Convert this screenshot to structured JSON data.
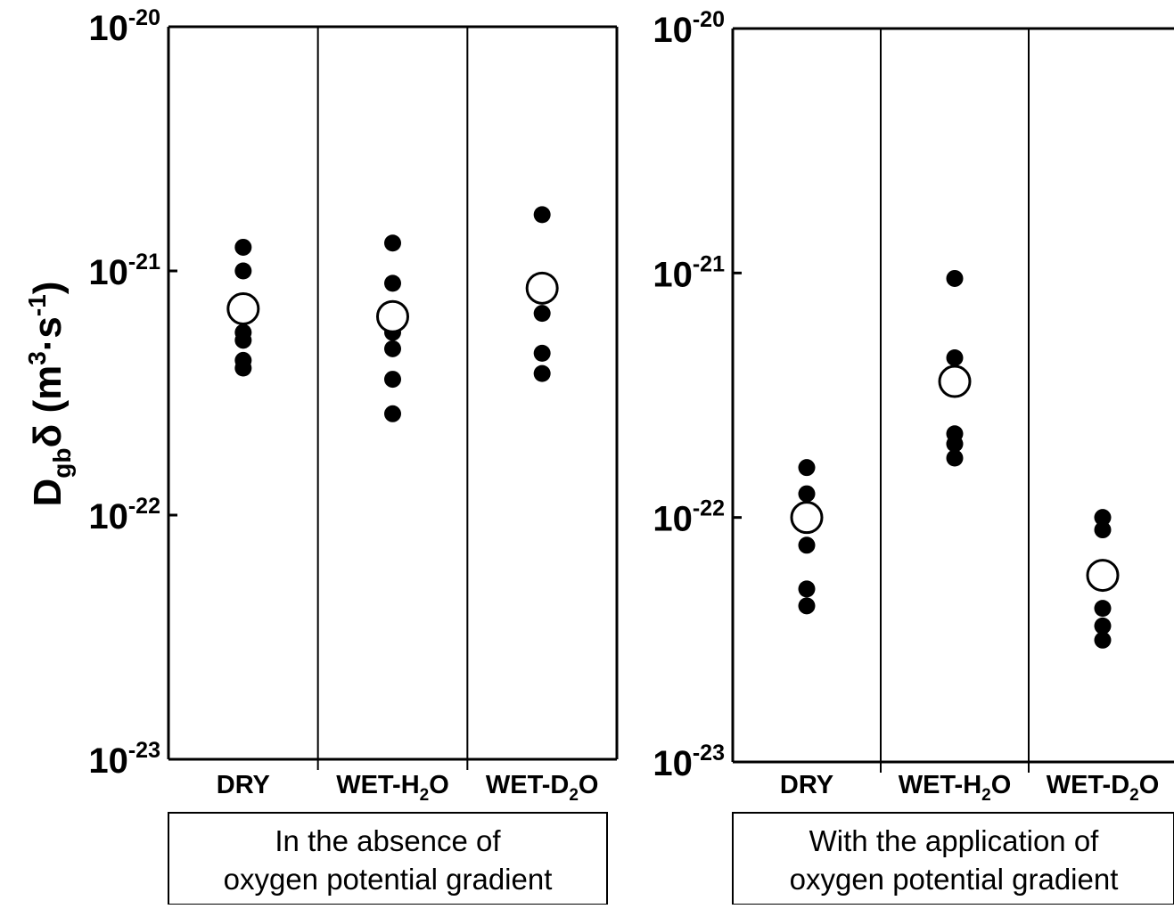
{
  "chart_data": {
    "type": "scatter",
    "ylabel": {
      "main": "D",
      "sub": "gb",
      "delta": "δ",
      "units_open": " (m",
      "units_sup1": "3",
      "units_mid": "·s",
      "units_sup2": "-1",
      "units_close": ")"
    },
    "y_scale": "log",
    "ylim": [
      1e-23,
      1e-20
    ],
    "y_ticks": [
      {
        "base": "10",
        "exp": "-20",
        "value": 1e-20
      },
      {
        "base": "10",
        "exp": "-21",
        "value": 1e-21
      },
      {
        "base": "10",
        "exp": "-22",
        "value": 1e-22
      },
      {
        "base": "10",
        "exp": "-23",
        "value": 1e-23
      }
    ],
    "categories": [
      {
        "pre": "DRY",
        "sub": "",
        "post": ""
      },
      {
        "pre": "WET-H",
        "sub": "2",
        "post": "O"
      },
      {
        "pre": "WET-D",
        "sub": "2",
        "post": "O"
      }
    ],
    "legend": {
      "individual_marker": "filled circle",
      "mean_marker": "open circle"
    },
    "panels": [
      {
        "caption": [
          "In the absence of",
          "oxygen potential gradient"
        ],
        "groups": [
          {
            "category": "DRY",
            "points": [
              1.25e-21,
              1e-21,
              5.6e-22,
              5.2e-22,
              4.3e-22,
              4e-22
            ],
            "mean": 7e-22
          },
          {
            "category": "WET-H2O",
            "points": [
              1.3e-21,
              8.9e-22,
              5.6e-22,
              4.8e-22,
              3.6e-22,
              2.6e-22
            ],
            "mean": 6.5e-22
          },
          {
            "category": "WET-D2O",
            "points": [
              1.7e-21,
              6.7e-22,
              4.6e-22,
              3.8e-22
            ],
            "mean": 8.5e-22
          }
        ]
      },
      {
        "caption": [
          "With the application of",
          "oxygen potential gradient"
        ],
        "groups": [
          {
            "category": "DRY",
            "points": [
              1.6e-22,
              1.25e-22,
              1.05e-22,
              7.7e-23,
              5.1e-23,
              4.35e-23
            ],
            "mean": 1e-22
          },
          {
            "category": "WET-H2O",
            "points": [
              9.5e-22,
              4.5e-22,
              2.2e-22,
              2e-22,
              1.75e-22
            ],
            "mean": 3.6e-22
          },
          {
            "category": "WET-D2O",
            "points": [
              1e-22,
              8.9e-23,
              6.1e-23,
              4.25e-23,
              3.6e-23,
              3.15e-23
            ],
            "mean": 5.8e-23
          }
        ]
      }
    ]
  }
}
